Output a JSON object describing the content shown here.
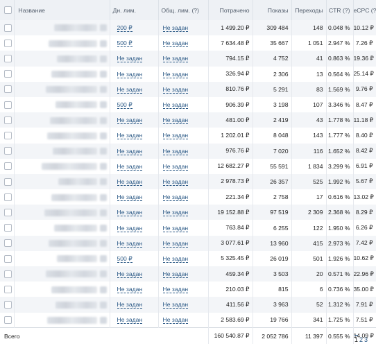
{
  "headers": {
    "name": "Название",
    "day_limit": "Дн. лим.",
    "total_limit": "Общ. лим. (?)",
    "spent": "Потрачено",
    "views": "Показы",
    "clicks": "Переходы",
    "ctr": "CTR (?)",
    "ecpc": "eCPC (?)"
  },
  "rows": [
    {
      "day": "200 ₽",
      "total": "Не задан",
      "spent": "1 499.20 ₽",
      "views": "309 484",
      "clicks": "148",
      "ctr": "0.048 %",
      "ecpc": "10.12 ₽"
    },
    {
      "day": "500 ₽",
      "total": "Не задан",
      "spent": "7 634.48 ₽",
      "views": "35 667",
      "clicks": "1 051",
      "ctr": "2.947 %",
      "ecpc": "7.26 ₽"
    },
    {
      "day": "Не задан",
      "total": "Не задан",
      "spent": "794.15 ₽",
      "views": "4 752",
      "clicks": "41",
      "ctr": "0.863 %",
      "ecpc": "19.36 ₽"
    },
    {
      "day": "Не задан",
      "total": "Не задан",
      "spent": "326.94 ₽",
      "views": "2 306",
      "clicks": "13",
      "ctr": "0.564 %",
      "ecpc": "25.14 ₽"
    },
    {
      "day": "Не задан",
      "total": "Не задан",
      "spent": "810.76 ₽",
      "views": "5 291",
      "clicks": "83",
      "ctr": "1.569 %",
      "ecpc": "9.76 ₽"
    },
    {
      "day": "500 ₽",
      "total": "Не задан",
      "spent": "906.39 ₽",
      "views": "3 198",
      "clicks": "107",
      "ctr": "3.346 %",
      "ecpc": "8.47 ₽"
    },
    {
      "day": "Не задан",
      "total": "Не задан",
      "spent": "481.00 ₽",
      "views": "2 419",
      "clicks": "43",
      "ctr": "1.778 %",
      "ecpc": "11.18 ₽"
    },
    {
      "day": "Не задан",
      "total": "Не задан",
      "spent": "1 202.01 ₽",
      "views": "8 048",
      "clicks": "143",
      "ctr": "1.777 %",
      "ecpc": "8.40 ₽"
    },
    {
      "day": "Не задан",
      "total": "Не задан",
      "spent": "976.76 ₽",
      "views": "7 020",
      "clicks": "116",
      "ctr": "1.652 %",
      "ecpc": "8.42 ₽"
    },
    {
      "day": "Не задан",
      "total": "Не задан",
      "spent": "12 682.27 ₽",
      "views": "55 591",
      "clicks": "1 834",
      "ctr": "3.299 %",
      "ecpc": "6.91 ₽"
    },
    {
      "day": "Не задан",
      "total": "Не задан",
      "spent": "2 978.73 ₽",
      "views": "26 357",
      "clicks": "525",
      "ctr": "1.992 %",
      "ecpc": "5.67 ₽"
    },
    {
      "day": "Не задан",
      "total": "Не задан",
      "spent": "221.34 ₽",
      "views": "2 758",
      "clicks": "17",
      "ctr": "0.616 %",
      "ecpc": "13.02 ₽"
    },
    {
      "day": "Не задан",
      "total": "Не задан",
      "spent": "19 152.88 ₽",
      "views": "97 519",
      "clicks": "2 309",
      "ctr": "2.368 %",
      "ecpc": "8.29 ₽"
    },
    {
      "day": "Не задан",
      "total": "Не задан",
      "spent": "763.84 ₽",
      "views": "6 255",
      "clicks": "122",
      "ctr": "1.950 %",
      "ecpc": "6.26 ₽"
    },
    {
      "day": "Не задан",
      "total": "Не задан",
      "spent": "3 077.61 ₽",
      "views": "13 960",
      "clicks": "415",
      "ctr": "2.973 %",
      "ecpc": "7.42 ₽"
    },
    {
      "day": "500 ₽",
      "total": "Не задан",
      "spent": "5 325.45 ₽",
      "views": "26 019",
      "clicks": "501",
      "ctr": "1.926 %",
      "ecpc": "10.62 ₽"
    },
    {
      "day": "Не задан",
      "total": "Не задан",
      "spent": "459.34 ₽",
      "views": "3 503",
      "clicks": "20",
      "ctr": "0.571 %",
      "ecpc": "22.96 ₽"
    },
    {
      "day": "Не задан",
      "total": "Не задан",
      "spent": "210.03 ₽",
      "views": "815",
      "clicks": "6",
      "ctr": "0.736 %",
      "ecpc": "35.00 ₽"
    },
    {
      "day": "Не задан",
      "total": "Не задан",
      "spent": "411.56 ₽",
      "views": "3 963",
      "clicks": "52",
      "ctr": "1.312 %",
      "ecpc": "7.91 ₽"
    },
    {
      "day": "Не задан",
      "total": "Не задан",
      "spent": "2 583.69 ₽",
      "views": "19 766",
      "clicks": "341",
      "ctr": "1.725 %",
      "ecpc": "7.51 ₽"
    }
  ],
  "totals": {
    "label": "Всего",
    "spent": "160 540.87 ₽",
    "views": "2 052 786",
    "clicks": "11 397",
    "ctr": "0.555 %",
    "ecpc": "14.09 ₽"
  },
  "pagination": {
    "pages": [
      "1",
      "2",
      "3"
    ],
    "current": "1"
  },
  "colors": {
    "header_bg": "#eef1f5",
    "row_alt": "#f3f5f8",
    "link": "#2a5885"
  }
}
